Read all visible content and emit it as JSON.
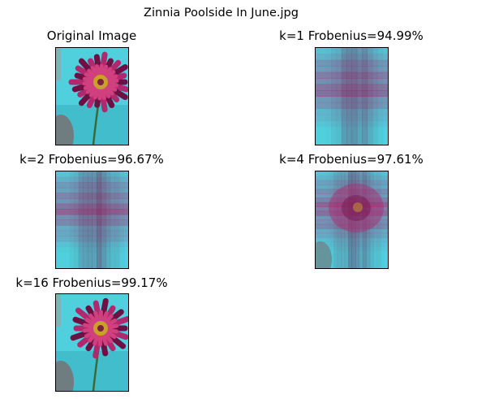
{
  "figure": {
    "title": "Zinnia Poolside In June.jpg"
  },
  "chart_data": {
    "type": "image-grid",
    "title": "Zinnia Poolside In June.jpg",
    "panels": [
      {
        "id": "original",
        "title": "Original Image",
        "variant": "original"
      },
      {
        "id": "k1",
        "title": "k=1 Frobenius=94.99%",
        "k": 1,
        "frobenius_pct": 94.99,
        "variant": "rank1"
      },
      {
        "id": "k2",
        "title": "k=2 Frobenius=96.67%",
        "k": 2,
        "frobenius_pct": 96.67,
        "variant": "rank2"
      },
      {
        "id": "k4",
        "title": "k=4 Frobenius=97.61%",
        "k": 4,
        "frobenius_pct": 97.61,
        "variant": "rank4"
      },
      {
        "id": "k16",
        "title": "k=16 Frobenius=99.17%",
        "k": 16,
        "frobenius_pct": 99.17,
        "variant": "rank16"
      }
    ],
    "colors": {
      "background_cyan": "#4fd0dc",
      "petal_magenta": "#b0286e",
      "petal_dark": "#6e1044",
      "center_gold": "#c9a028",
      "shadow_gray": "#6f7c80"
    }
  }
}
